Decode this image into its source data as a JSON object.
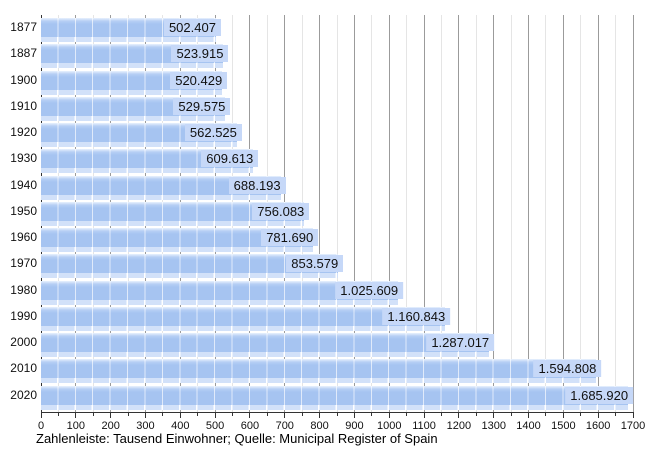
{
  "chart_data": {
    "type": "bar",
    "orientation": "horizontal",
    "categories": [
      "1877",
      "1887",
      "1900",
      "1910",
      "1920",
      "1930",
      "1940",
      "1950",
      "1960",
      "1970",
      "1980",
      "1990",
      "2000",
      "2010",
      "2020"
    ],
    "values_thousands": [
      502.407,
      523.915,
      520.429,
      529.575,
      562.525,
      609.613,
      688.193,
      756.083,
      781.69,
      853.579,
      1025.609,
      1160.843,
      1287.017,
      1594.808,
      1685.92
    ],
    "value_labels": [
      "502.407",
      "523.915",
      "520.429",
      "529.575",
      "562.525",
      "609.613",
      "688.193",
      "756.083",
      "781.690",
      "853.579",
      "1.025.609",
      "1.160.843",
      "1.287.017",
      "1.594.808",
      "1.685.920"
    ],
    "xlim": [
      0,
      1700
    ],
    "x_tick_step_major": 100,
    "x_tick_step_minor": 50,
    "x_tick_labels": [
      "0",
      "100",
      "200",
      "300",
      "400",
      "500",
      "600",
      "700",
      "800",
      "900",
      "1000",
      "1100",
      "1200",
      "1300",
      "1400",
      "1500",
      "1600",
      "1700"
    ],
    "xlabel": "",
    "ylabel": "",
    "title": "",
    "grid": "vertical, minor every 50 (light), major every 100 (dark)",
    "legend_position": "none",
    "caption": "Zahlenleiste: Tausend Einwohner; Quelle: Municipal Register of Spain",
    "colors": {
      "bar": "#a6c4f1",
      "bar_top_highlight": "#e9f1fd",
      "bar_segment_line": "rgba(255,255,255,0.65)",
      "value_label_bg": "#c6d8f8",
      "shadow_strip": "#d2e1f9",
      "grid_major": "#9b9b9b",
      "grid_minor": "#e5e5e5",
      "axis": "#333333",
      "text": "#111111"
    }
  }
}
